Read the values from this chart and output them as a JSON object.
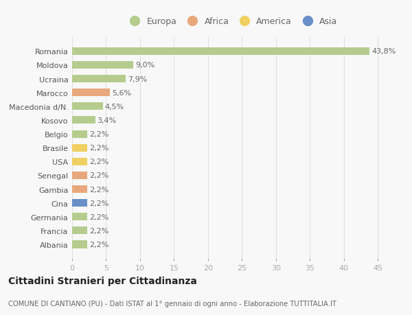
{
  "countries": [
    "Romania",
    "Moldova",
    "Ucraina",
    "Marocco",
    "Macedonia d/N.",
    "Kosovo",
    "Belgio",
    "Brasile",
    "USA",
    "Senegal",
    "Gambia",
    "Cina",
    "Germania",
    "Francia",
    "Albania"
  ],
  "values": [
    43.8,
    9.0,
    7.9,
    5.6,
    4.5,
    3.4,
    2.2,
    2.2,
    2.2,
    2.2,
    2.2,
    2.2,
    2.2,
    2.2,
    2.2
  ],
  "labels": [
    "43,8%",
    "9,0%",
    "7,9%",
    "5,6%",
    "4,5%",
    "3,4%",
    "2,2%",
    "2,2%",
    "2,2%",
    "2,2%",
    "2,2%",
    "2,2%",
    "2,2%",
    "2,2%",
    "2,2%"
  ],
  "continents": [
    "Europa",
    "Europa",
    "Europa",
    "Africa",
    "Europa",
    "Europa",
    "Europa",
    "America",
    "America",
    "Africa",
    "Africa",
    "Asia",
    "Europa",
    "Europa",
    "Europa"
  ],
  "continent_colors": {
    "Europa": "#b5cc8e",
    "Africa": "#e8a87c",
    "America": "#f0d060",
    "Asia": "#6a8fc8"
  },
  "legend_items": [
    {
      "label": "Europa",
      "color": "#b5cc8e"
    },
    {
      "label": "Africa",
      "color": "#e8a87c"
    },
    {
      "label": "America",
      "color": "#f0d060"
    },
    {
      "label": "Asia",
      "color": "#6a8fc8"
    }
  ],
  "xlim": [
    0,
    47
  ],
  "xticks": [
    0,
    5,
    10,
    15,
    20,
    25,
    30,
    35,
    40,
    45
  ],
  "title": "Cittadini Stranieri per Cittadinanza",
  "subtitle": "COMUNE DI CANTIANO (PU) - Dati ISTAT al 1° gennaio di ogni anno - Elaborazione TUTTITALIA.IT",
  "background_color": "#f8f8f8",
  "grid_color": "#e0e0e0",
  "bar_height": 0.55,
  "label_fontsize": 8,
  "ytick_fontsize": 8,
  "xtick_fontsize": 8
}
